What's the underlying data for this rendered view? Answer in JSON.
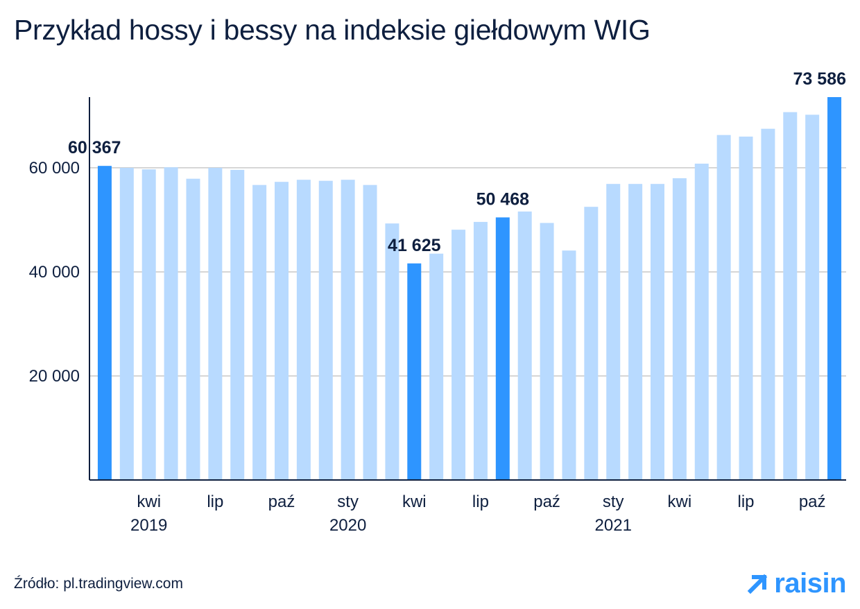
{
  "chart_data": {
    "type": "bar",
    "title": "Przykład hossy i bessy na indeksie giełdowym WIG",
    "ylim": [
      0,
      73586
    ],
    "yticks": [
      20000,
      40000,
      60000
    ],
    "ytick_labels": [
      "20 000",
      "40 000",
      "60 000"
    ],
    "grid": true,
    "x_tick_labels": [
      {
        "index": 2,
        "month": "kwi",
        "year": "2019"
      },
      {
        "index": 5,
        "month": "lip",
        "year": ""
      },
      {
        "index": 8,
        "month": "paź",
        "year": ""
      },
      {
        "index": 11,
        "month": "sty",
        "year": "2020"
      },
      {
        "index": 14,
        "month": "kwi",
        "year": ""
      },
      {
        "index": 17,
        "month": "lip",
        "year": ""
      },
      {
        "index": 20,
        "month": "paź",
        "year": ""
      },
      {
        "index": 23,
        "month": "sty",
        "year": "2021"
      },
      {
        "index": 26,
        "month": "kwi",
        "year": ""
      },
      {
        "index": 29,
        "month": "lip",
        "year": ""
      },
      {
        "index": 32,
        "month": "paź",
        "year": ""
      }
    ],
    "values": [
      60367,
      60000,
      59700,
      60100,
      57900,
      60000,
      59600,
      56700,
      57300,
      57700,
      57500,
      57700,
      56700,
      49300,
      41625,
      43500,
      48100,
      49600,
      50468,
      51600,
      49400,
      44100,
      52500,
      56900,
      56900,
      56900,
      58000,
      60800,
      66300,
      66000,
      67500,
      70700,
      70200,
      73586
    ],
    "highlight_indices": [
      0,
      14,
      18,
      33
    ],
    "data_labels": [
      {
        "index": 0,
        "text": "60 367"
      },
      {
        "index": 14,
        "text": "41 625"
      },
      {
        "index": 18,
        "text": "50 468"
      },
      {
        "index": 33,
        "text": "73 586"
      }
    ],
    "colors": {
      "bar": "#b8daff",
      "highlight": "#2e95ff",
      "axis": "#0e1f3f",
      "grid": "#c9c9c9"
    }
  },
  "footer": {
    "source": "Źródło: pl.tradingview.com",
    "brand": "raisin",
    "brand_icon": "arrow-up-right-icon"
  }
}
